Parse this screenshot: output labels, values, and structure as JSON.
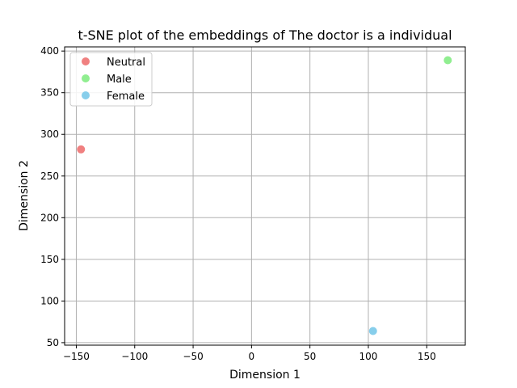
{
  "chart_data": {
    "type": "scatter",
    "title": "t-SNE plot of the embeddings of The doctor is a individual",
    "xlabel": "Dimension 1",
    "ylabel": "Dimension 2",
    "xlim": [
      -160,
      183
    ],
    "ylim": [
      47,
      405
    ],
    "xticks": [
      -150,
      -100,
      -50,
      0,
      50,
      100,
      150
    ],
    "yticks": [
      50,
      100,
      150,
      200,
      250,
      300,
      350,
      400
    ],
    "xtick_labels": [
      "−150",
      "−100",
      "−50",
      "0",
      "50",
      "100",
      "150"
    ],
    "ytick_labels": [
      "50",
      "100",
      "150",
      "200",
      "250",
      "300",
      "350",
      "400"
    ],
    "grid": true,
    "legend_position": "top-left",
    "series": [
      {
        "name": "Neutral",
        "color": "#F08080",
        "points": [
          {
            "x": -146,
            "y": 282
          }
        ]
      },
      {
        "name": "Male",
        "color": "#90EE90",
        "points": [
          {
            "x": 168,
            "y": 389
          }
        ]
      },
      {
        "name": "Female",
        "color": "#87CEEB",
        "points": [
          {
            "x": 104,
            "y": 64
          }
        ]
      }
    ]
  }
}
